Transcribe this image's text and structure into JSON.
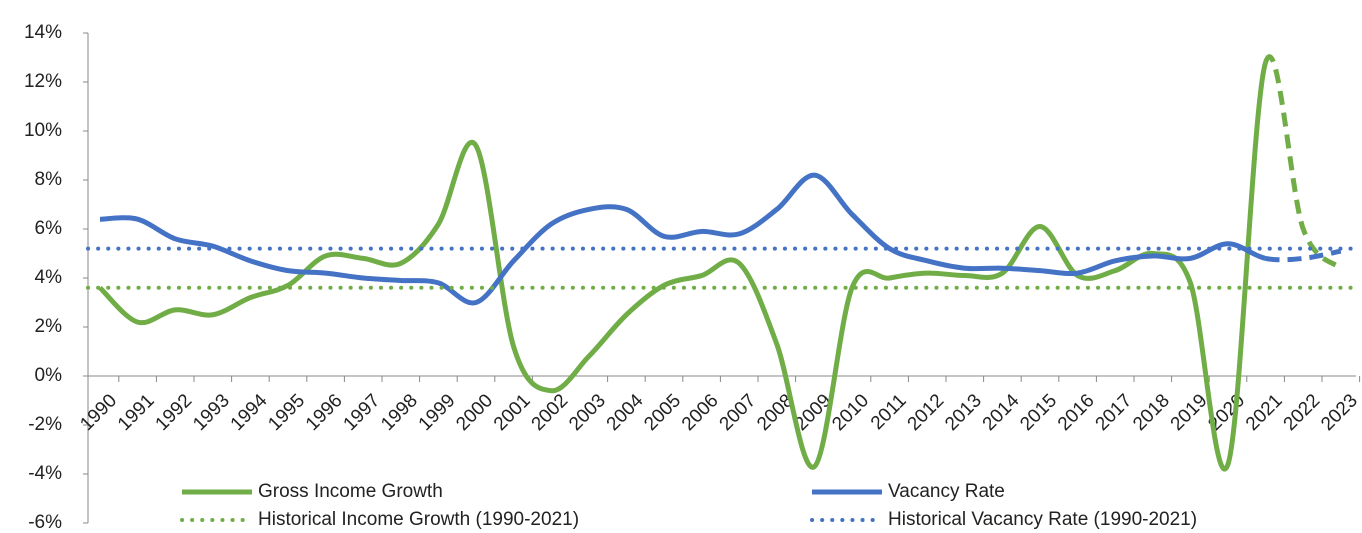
{
  "chart_data": {
    "type": "line",
    "categories": [
      "1990",
      "1991",
      "1992",
      "1993",
      "1994",
      "1995",
      "1996",
      "1997",
      "1998",
      "1999",
      "2000",
      "2001",
      "2002",
      "2003",
      "2004",
      "2005",
      "2006",
      "2007",
      "2008",
      "2009",
      "2010",
      "2011",
      "2012",
      "2013",
      "2014",
      "2015",
      "2016",
      "2017",
      "2018",
      "2019",
      "2020",
      "2021",
      "2022",
      "2023"
    ],
    "series": [
      {
        "name": "Gross Income Growth",
        "color": "#70ad47",
        "style": "solid",
        "dash_start": 31,
        "values": [
          3.6,
          2.2,
          2.7,
          2.5,
          3.2,
          3.7,
          4.9,
          4.8,
          4.6,
          6.2,
          9.4,
          1.2,
          -0.6,
          0.8,
          2.5,
          3.7,
          4.1,
          4.6,
          1.3,
          -3.7,
          3.6,
          4.0,
          4.2,
          4.1,
          4.2,
          6.1,
          4.1,
          4.3,
          5.0,
          3.8,
          -3.6,
          12.8,
          6.0,
          4.4
        ]
      },
      {
        "name": "Vacancy Rate",
        "color": "#4472c4",
        "style": "solid",
        "dash_start": 31,
        "values": [
          6.4,
          6.4,
          5.6,
          5.3,
          4.7,
          4.3,
          4.2,
          4.0,
          3.9,
          3.8,
          3.0,
          4.7,
          6.2,
          6.8,
          6.8,
          5.7,
          5.9,
          5.8,
          6.8,
          8.2,
          6.6,
          5.2,
          4.7,
          4.4,
          4.4,
          4.3,
          4.2,
          4.7,
          4.9,
          4.8,
          5.4,
          4.8,
          4.8,
          5.1
        ]
      },
      {
        "name": "Historical Income Growth (1990-2021)",
        "color": "#70ad47",
        "style": "dotted",
        "value": 3.6
      },
      {
        "name": "Historical Vacancy Rate (1990-2021)",
        "color": "#4472c4",
        "style": "dotted",
        "value": 5.2
      }
    ],
    "ylim": [
      -6,
      14
    ],
    "yticks": [
      {
        "value": -6,
        "label": "-6%"
      },
      {
        "value": -4,
        "label": "-4%"
      },
      {
        "value": -2,
        "label": "-2%"
      },
      {
        "value": 0,
        "label": "0%"
      },
      {
        "value": 2,
        "label": "2%"
      },
      {
        "value": 4,
        "label": "4%"
      },
      {
        "value": 6,
        "label": "6%"
      },
      {
        "value": 8,
        "label": "8%"
      },
      {
        "value": 10,
        "label": "10%"
      },
      {
        "value": 12,
        "label": "12%"
      },
      {
        "value": 14,
        "label": "14%"
      }
    ],
    "grid": false
  }
}
